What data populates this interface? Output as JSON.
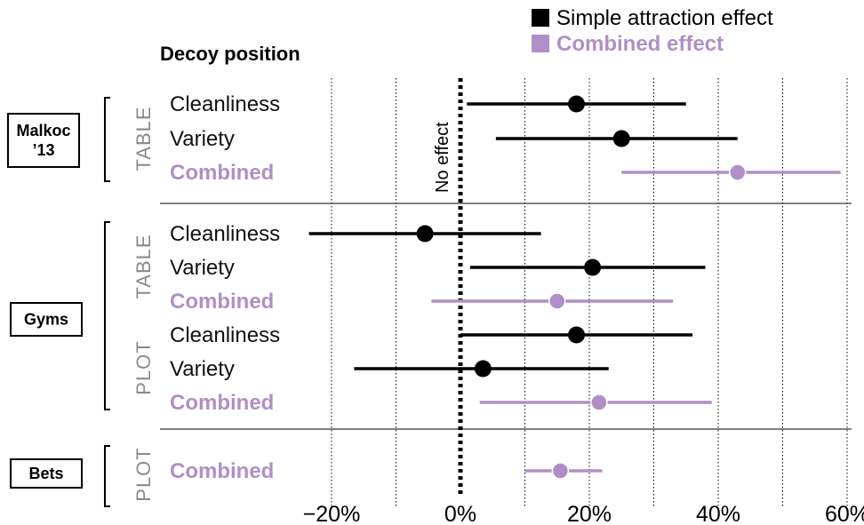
{
  "colors": {
    "simple": "#000000",
    "combined": "#b08fc7",
    "condition_text": "#8a8a8a",
    "grid": "#000000",
    "separator": "#000000"
  },
  "legend": {
    "position": "top-right",
    "items": [
      {
        "label": "Simple attraction effect",
        "color": "#000000",
        "bold": false
      },
      {
        "label": "Combined effect",
        "color": "#b08fc7",
        "bold": true
      }
    ]
  },
  "decoy_title": "Decoy position",
  "chart_data": {
    "type": "forest-plot",
    "xlim": [
      -0.2,
      0.6
    ],
    "x_ticks": [
      -0.2,
      0,
      0.2,
      0.4,
      0.6
    ],
    "x_tick_labels": [
      "−20%",
      "0%",
      "20%",
      "40%",
      "60%"
    ],
    "minor_grid": [
      -0.1,
      0.1,
      0.3,
      0.5
    ],
    "reference_line": {
      "x": 0,
      "label": "No effect",
      "style": "dotted"
    },
    "studies": [
      {
        "name": "Malkoc '13",
        "name_lines": [
          "Malkoc",
          "’13"
        ],
        "conditions": [
          {
            "name": "TABLE",
            "rows": [
              {
                "label": "Cleanliness",
                "kind": "simple",
                "estimate": 0.18,
                "ci_low": 0.01,
                "ci_high": 0.35
              },
              {
                "label": "Variety",
                "kind": "simple",
                "estimate": 0.25,
                "ci_low": 0.055,
                "ci_high": 0.43
              },
              {
                "label": "Combined",
                "kind": "combined",
                "estimate": 0.43,
                "ci_low": 0.25,
                "ci_high": 0.59
              }
            ]
          }
        ]
      },
      {
        "name": "Gyms",
        "name_lines": [
          "Gyms"
        ],
        "conditions": [
          {
            "name": "TABLE",
            "rows": [
              {
                "label": "Cleanliness",
                "kind": "simple",
                "estimate": -0.055,
                "ci_low": -0.235,
                "ci_high": 0.125
              },
              {
                "label": "Variety",
                "kind": "simple",
                "estimate": 0.205,
                "ci_low": 0.015,
                "ci_high": 0.38
              },
              {
                "label": "Combined",
                "kind": "combined",
                "estimate": 0.15,
                "ci_low": -0.045,
                "ci_high": 0.33
              }
            ]
          },
          {
            "name": "PLOT",
            "rows": [
              {
                "label": "Cleanliness",
                "kind": "simple",
                "estimate": 0.18,
                "ci_low": 0.0,
                "ci_high": 0.36
              },
              {
                "label": "Variety",
                "kind": "simple",
                "estimate": 0.035,
                "ci_low": -0.165,
                "ci_high": 0.23
              },
              {
                "label": "Combined",
                "kind": "combined",
                "estimate": 0.215,
                "ci_low": 0.03,
                "ci_high": 0.39
              }
            ]
          }
        ]
      },
      {
        "name": "Bets",
        "name_lines": [
          "Bets"
        ],
        "conditions": [
          {
            "name": "PLOT",
            "rows": [
              {
                "label": "Combined",
                "kind": "combined",
                "estimate": 0.155,
                "ci_low": 0.1,
                "ci_high": 0.22
              }
            ]
          }
        ]
      }
    ]
  }
}
